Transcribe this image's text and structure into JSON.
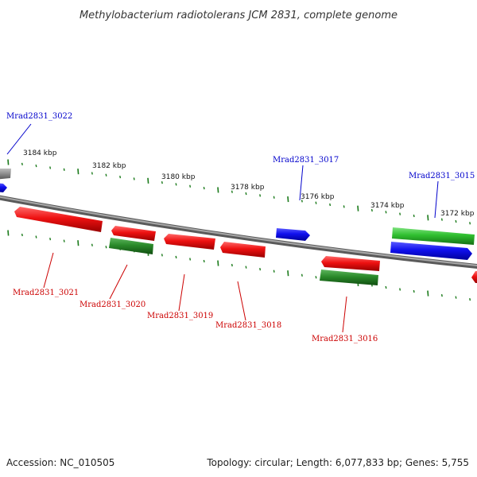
{
  "title": "Methylobacterium radiotolerans JCM 2831, complete genome",
  "footer": {
    "accession": "Accession: NC_010505",
    "summary": "Topology: circular; Length: 6,077,833 bp; Genes: 5,755"
  },
  "scale_labels": [
    "3184 kbp",
    "3182 kbp",
    "3180 kbp",
    "3178 kbp",
    "3176 kbp",
    "3174 kbp",
    "3172 kbp"
  ],
  "gene_labels": {
    "top": [
      "Mrad2831_3022",
      "Mrad2831_3017",
      "Mrad2831_3015"
    ],
    "bottom": [
      "Mrad2831_3021",
      "Mrad2831_3020",
      "Mrad2831_3019",
      "Mrad2831_3018",
      "Mrad2831_3016"
    ]
  },
  "colors": {
    "forward_gene": "#0000dd",
    "reverse_gene": "#dd0000",
    "rna_gene": "#2a9a2a",
    "tick": "#1a7a1a",
    "backbone": "#808080"
  }
}
